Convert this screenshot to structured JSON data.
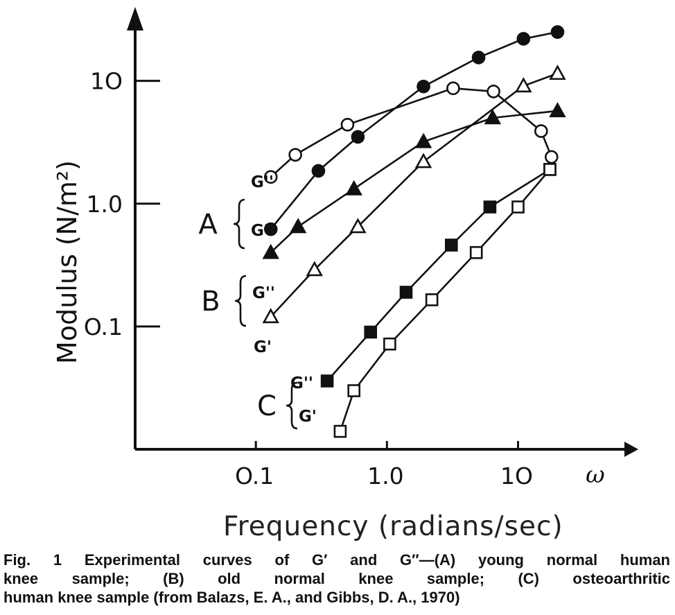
{
  "chart_data": {
    "type": "line",
    "scale": {
      "x": "log",
      "y": "log"
    },
    "xlim": [
      0.012,
      68
    ],
    "ylim": [
      0.01,
      40
    ],
    "x_ticks": [
      {
        "value": 0.1,
        "label": "O.1"
      },
      {
        "value": 1.0,
        "label": "1.0"
      },
      {
        "value": 10,
        "label": "1O"
      }
    ],
    "y_ticks": [
      {
        "value": 0.1,
        "label": "O.1"
      },
      {
        "value": 1.0,
        "label": "1.0"
      },
      {
        "value": 10,
        "label": "1O"
      }
    ],
    "x_axis_symbol": "ω",
    "xlabel": "Frequency (radians/sec)",
    "ylabel": "Modulus (N/m²)",
    "groups": [
      {
        "letter": "A",
        "members": [
          "A-G''",
          "A-G'"
        ]
      },
      {
        "letter": "B",
        "members": [
          "B-G''",
          "B-G'"
        ]
      },
      {
        "letter": "C",
        "members": [
          "C-G''",
          "C-G'"
        ]
      }
    ],
    "series": [
      {
        "id": "A-G''",
        "label": "G''",
        "marker": "circle-open",
        "x": [
          0.13,
          0.2,
          0.5,
          3.2,
          6.5,
          15,
          18
        ],
        "y": [
          1.65,
          2.5,
          4.4,
          8.7,
          8.2,
          3.9,
          2.4
        ]
      },
      {
        "id": "A-G'",
        "label": "G'",
        "marker": "circle-filled",
        "x": [
          0.13,
          0.3,
          0.6,
          1.9,
          5,
          11,
          20
        ],
        "y": [
          0.62,
          1.85,
          3.5,
          9.0,
          15.5,
          22,
          25
        ]
      },
      {
        "id": "B-G''",
        "label": "G''",
        "marker": "triangle-filled",
        "x": [
          0.13,
          0.21,
          0.56,
          1.9,
          6.4,
          20
        ],
        "y": [
          0.4,
          0.65,
          1.32,
          3.2,
          5.0,
          5.7
        ]
      },
      {
        "id": "B-G'",
        "label": "G'",
        "marker": "triangle-open",
        "x": [
          0.13,
          0.28,
          0.6,
          1.9,
          11,
          20
        ],
        "y": [
          0.12,
          0.29,
          0.65,
          2.2,
          9.1,
          11.5
        ]
      },
      {
        "id": "C-G''",
        "label": "G''",
        "marker": "square-filled",
        "x": [
          0.35,
          0.75,
          1.4,
          3.1,
          6.1,
          17.5
        ],
        "y": [
          0.036,
          0.09,
          0.19,
          0.46,
          0.94,
          1.9
        ]
      },
      {
        "id": "C-G'",
        "label": "G'",
        "marker": "square-open",
        "x": [
          0.44,
          0.56,
          1.05,
          2.2,
          4.8,
          10,
          17.5
        ],
        "y": [
          0.014,
          0.03,
          0.072,
          0.165,
          0.4,
          0.94,
          1.9
        ]
      }
    ]
  },
  "caption": {
    "line1": "Fig. 1   Experimental curves of G′ and G″—(A)   young normal human",
    "line2": "knee  sample;  (B)  old  normal  knee  sample;  (C)  osteoarthritic",
    "line3": "human knee sample (from Balazs, E. A., and Gibbs, D. A., 1970)"
  },
  "colors": {
    "ink": "#111111",
    "axis": "#333333"
  }
}
